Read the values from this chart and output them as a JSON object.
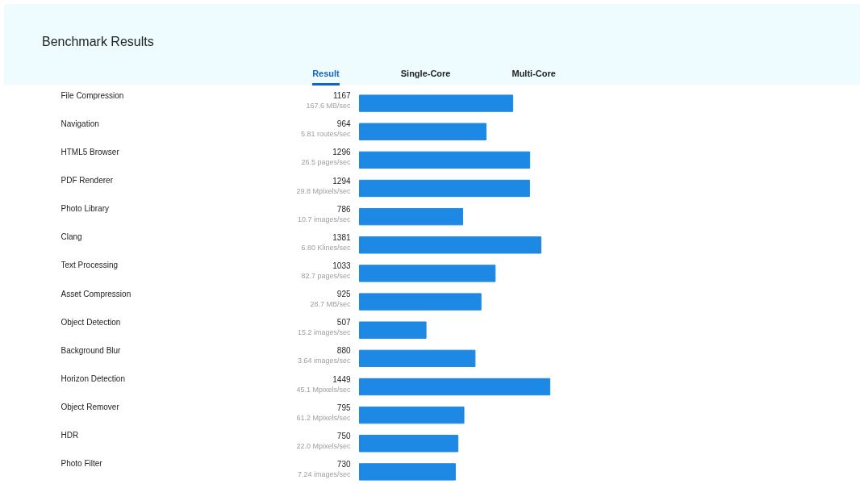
{
  "chart_data": {
    "type": "bar",
    "orientation": "horizontal",
    "title": "Benchmark Results",
    "categories": [
      "File Compression",
      "Navigation",
      "HTML5 Browser",
      "PDF Renderer",
      "Photo Library",
      "Clang",
      "Text Processing",
      "Asset Compression",
      "Object Detection",
      "Background Blur",
      "Horizon Detection",
      "Object Remover",
      "HDR",
      "Photo Filter"
    ],
    "values": [
      1167,
      964,
      1296,
      1294,
      786,
      1381,
      1033,
      925,
      507,
      880,
      1449,
      795,
      750,
      730
    ],
    "color": "#1e88e5",
    "data_labels": true,
    "annotations": [
      "Result",
      "Single-Core",
      "Multi-Core",
      "167.6 MB/sec",
      "5.81 routes/sec",
      "26.5 pages/sec",
      "29.8 Mpixels/sec",
      "10.7 images/sec",
      "6.80 Klines/sec",
      "82.7 pages/sec",
      "28.7 MB/sec",
      "15.2 images/sec",
      "3.64 images/sec",
      "45.1 Mpixels/sec",
      "61.2 Mpixels/sec",
      "22.0 Mpixels/sec",
      "7.24 images/sec"
    ]
  }
}
